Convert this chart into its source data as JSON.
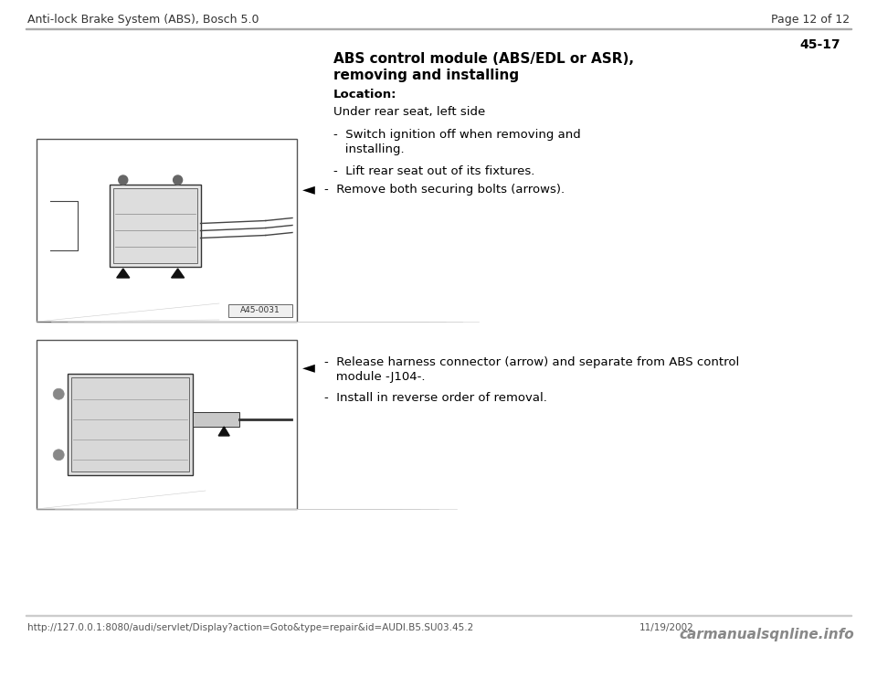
{
  "bg_color": "#ffffff",
  "header_left": "Anti-lock Brake System (ABS), Bosch 5.0",
  "header_right": "Page 12 of 12",
  "page_number": "45-17",
  "title_line1": "ABS control module (ABS/EDL or ASR),",
  "title_line2": "removing and installing",
  "location_label": "Location:",
  "location_text": "Under rear seat, left side",
  "bullet1_line1": "-  Switch ignition off when removing and",
  "bullet1_line2": "   installing.",
  "bullet2": "-  Lift rear seat out of its fixtures.",
  "arrow_bullet1": "-  Remove both securing bolts (arrows).",
  "arrow_bullet2_line1": "-  Release harness connector (arrow) and separate from ABS control",
  "arrow_bullet2_line2": "   module -J104-.",
  "bullet3": "-  Install in reverse order of removal.",
  "image1_label": "A45-0031",
  "footer_url": "http://127.0.0.1:8080/audi/servlet/Display?action=Goto&type=repair&id=AUDI.B5.SU03.45.2",
  "footer_date": "11/19/2002",
  "footer_logo": "carmanualsqnline.info",
  "header_color": "#333333",
  "text_color": "#000000",
  "footer_color": "#555555",
  "rule_color": "#999999",
  "img_border_color": "#555555",
  "img_bg_color": "#ffffff"
}
